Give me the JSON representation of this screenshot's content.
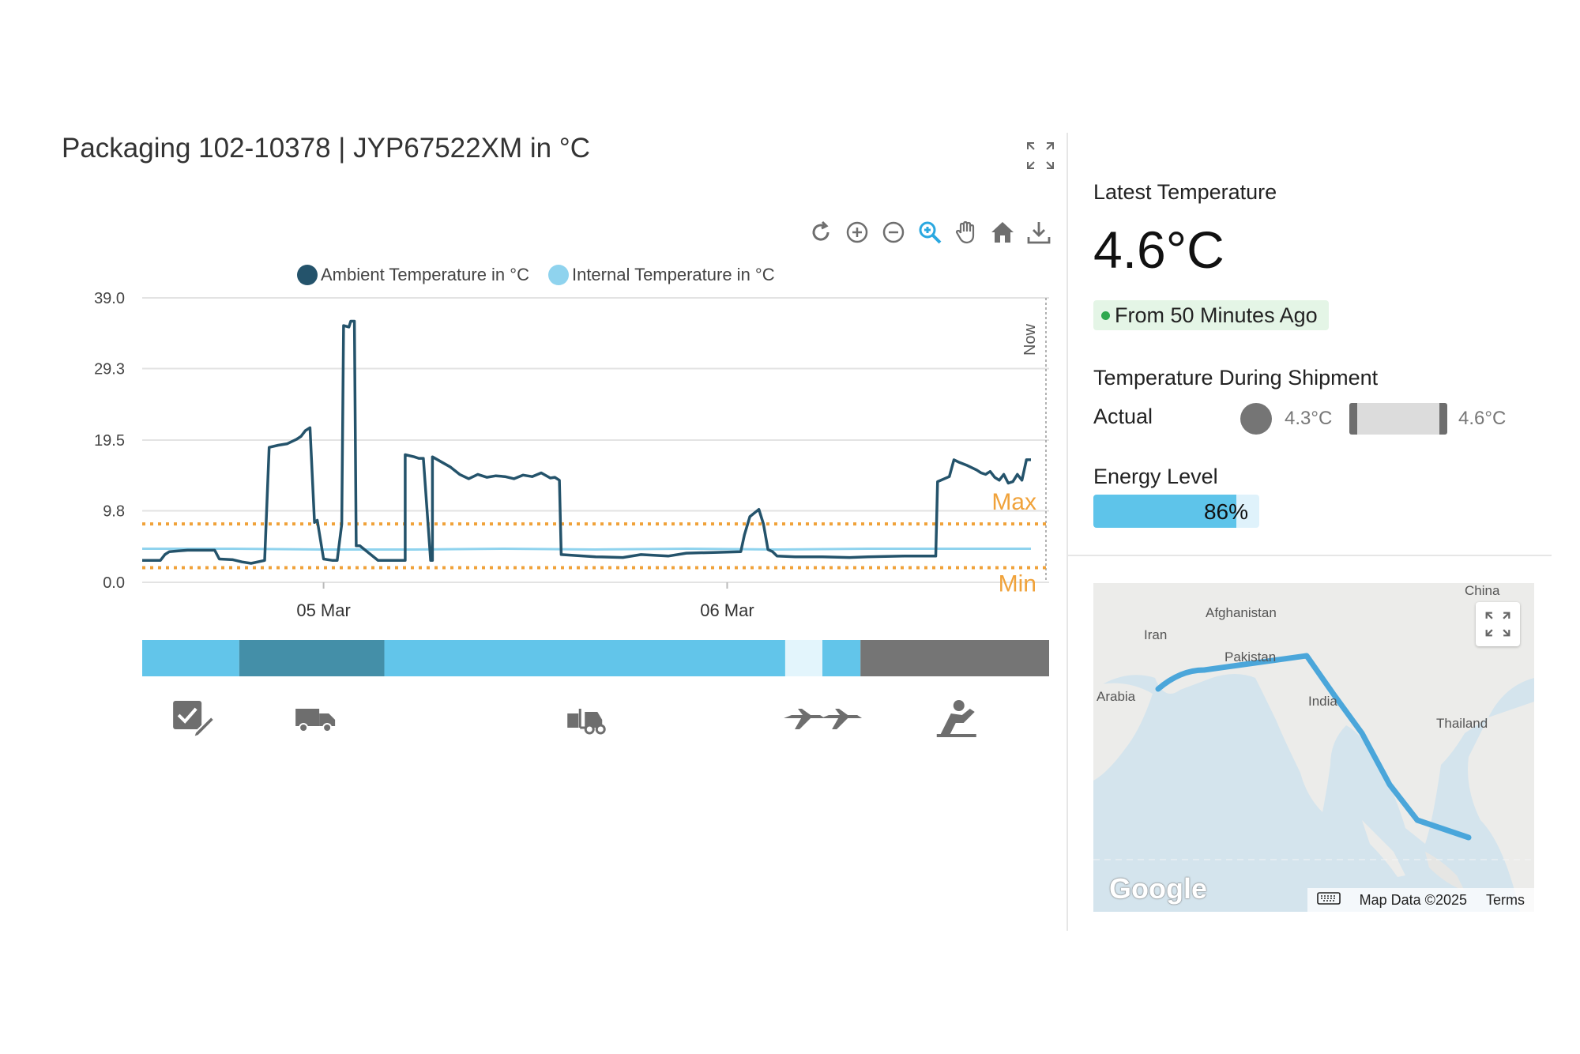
{
  "header": {
    "title": "Packaging 102-10378 | JYP67522XM in °C"
  },
  "toolbar": {
    "tools": [
      "reset-icon",
      "zoom-in-icon",
      "zoom-out-icon",
      "selection-zoom-icon",
      "pan-hand-icon",
      "home-icon",
      "download-icon"
    ]
  },
  "chart_data": {
    "type": "line",
    "title": "",
    "xlabel": "",
    "ylabel": "",
    "ylim": [
      0.0,
      39.0
    ],
    "yticks": [
      "39.0",
      "29.3",
      "19.5",
      "9.8",
      "0.0"
    ],
    "x_ticks": [
      "05 Mar",
      "06 Mar"
    ],
    "x_tick_positions": [
      0.2,
      0.645
    ],
    "now_label": "Now",
    "grid": true,
    "legend": "top",
    "thresholds": [
      {
        "label": "Max",
        "value": 8.0,
        "color": "#f0a23a"
      },
      {
        "label": "Min",
        "value": 2.0,
        "color": "#f0a23a"
      }
    ],
    "series": [
      {
        "name": "Ambient Temperature in °C",
        "color": "#24536b",
        "x": [
          0,
          0.02,
          0.025,
          0.03,
          0.04,
          0.05,
          0.08,
          0.085,
          0.1,
          0.11,
          0.12,
          0.135,
          0.14,
          0.15,
          0.16,
          0.17,
          0.175,
          0.18,
          0.185,
          0.19,
          0.193,
          0.2,
          0.21,
          0.215,
          0.22,
          0.222,
          0.228,
          0.23,
          0.234,
          0.236,
          0.24,
          0.26,
          0.28,
          0.282,
          0.29,
          0.29,
          0.3,
          0.305,
          0.31,
          0.318,
          0.32,
          0.32,
          0.33,
          0.34,
          0.35,
          0.36,
          0.37,
          0.38,
          0.39,
          0.4,
          0.41,
          0.42,
          0.43,
          0.44,
          0.45,
          0.455,
          0.46,
          0.462,
          0.5,
          0.53,
          0.55,
          0.58,
          0.6,
          0.63,
          0.66,
          0.664,
          0.67,
          0.68,
          0.685,
          0.69,
          0.695,
          0.7,
          0.72,
          0.75,
          0.78,
          0.8,
          0.84,
          0.875,
          0.877,
          0.89,
          0.895,
          0.9,
          0.91,
          0.92,
          0.925,
          0.93,
          0.935,
          0.94,
          0.945,
          0.95,
          0.955,
          0.96,
          0.965,
          0.97,
          0.975,
          0.98
        ],
        "values": [
          3.0,
          3.0,
          3.8,
          4.2,
          4.3,
          4.4,
          4.4,
          3.2,
          3.1,
          2.8,
          2.6,
          3.0,
          18.5,
          18.8,
          19.0,
          19.6,
          20.0,
          20.8,
          21.2,
          8.2,
          8.5,
          3.2,
          3.0,
          3.0,
          8.0,
          35.2,
          35.0,
          35.8,
          35.8,
          5.0,
          5.0,
          3.0,
          3.0,
          3.0,
          3.0,
          17.5,
          17.2,
          17.0,
          17.0,
          3.0,
          3.0,
          17.2,
          16.5,
          15.8,
          14.8,
          14.2,
          14.8,
          14.4,
          14.6,
          14.5,
          14.2,
          14.7,
          14.5,
          15.0,
          14.3,
          14.4,
          14.0,
          3.8,
          3.5,
          3.4,
          3.8,
          3.6,
          4.0,
          4.1,
          4.2,
          6.5,
          9.0,
          10.0,
          8.0,
          4.5,
          4.2,
          3.6,
          3.5,
          3.5,
          3.4,
          3.5,
          3.6,
          3.6,
          13.8,
          14.5,
          16.8,
          16.5,
          16.0,
          15.4,
          15.0,
          14.8,
          15.2,
          14.4,
          14.0,
          14.8,
          13.6,
          13.8,
          14.8,
          14.0,
          16.8,
          16.8
        ]
      },
      {
        "name": "Internal Temperature in °C",
        "color": "#8fd3ee",
        "x": [
          0,
          0.1,
          0.2,
          0.3,
          0.4,
          0.5,
          0.6,
          0.7,
          0.8,
          0.9,
          0.98
        ],
        "values": [
          4.6,
          4.6,
          4.5,
          4.5,
          4.6,
          4.5,
          4.6,
          4.5,
          4.6,
          4.6,
          4.6
        ]
      }
    ]
  },
  "timeline": {
    "segments": [
      {
        "start": 0.0,
        "end": 0.107,
        "color": "#62c5ea"
      },
      {
        "start": 0.107,
        "end": 0.267,
        "color": "#448fa8"
      },
      {
        "start": 0.267,
        "end": 0.709,
        "color": "#62c5ea"
      },
      {
        "start": 0.709,
        "end": 0.75,
        "color": "#e3f5fc"
      },
      {
        "start": 0.75,
        "end": 0.792,
        "color": "#62c5ea"
      },
      {
        "start": 0.792,
        "end": 1.0,
        "color": "#757575"
      }
    ],
    "icons": [
      {
        "name": "checklist-sign-icon",
        "pos": 0.055
      },
      {
        "name": "truck-icon",
        "pos": 0.19
      },
      {
        "name": "forklift-icon",
        "pos": 0.488
      },
      {
        "name": "airplane-icon",
        "pos": 0.73
      },
      {
        "name": "airplane-icon",
        "pos": 0.771
      },
      {
        "name": "delivery-person-icon",
        "pos": 0.897
      }
    ]
  },
  "latest": {
    "label": "Latest Temperature",
    "value": "4.6°C",
    "ago": "From 50 Minutes Ago"
  },
  "shipment": {
    "label": "Temperature During Shipment",
    "actual_label": "Actual",
    "min": "4.3°C",
    "max": "4.6°C"
  },
  "energy": {
    "label": "Energy Level",
    "value_text": "86%",
    "value": 0.86
  },
  "map": {
    "labels": {
      "china": "China",
      "afghanistan": "Afghanistan",
      "iran": "Iran",
      "pakistan": "Pakistan",
      "arabia": "Arabia",
      "india": "India",
      "thailand": "Thailand"
    },
    "logo": "Google",
    "map_data": "Map Data ©2025",
    "terms": "Terms"
  }
}
